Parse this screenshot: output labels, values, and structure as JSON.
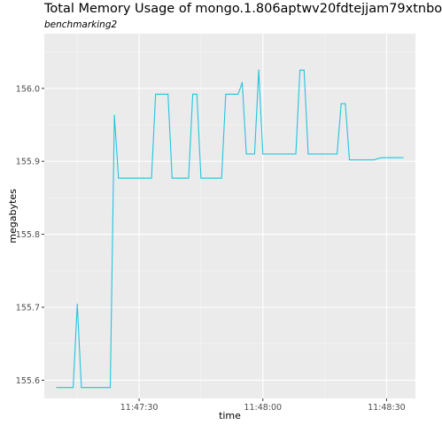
{
  "chart_data": {
    "type": "line",
    "title": "Total Memory Usage of mongo.1.806aptwv20fdtejjam79xtnbo",
    "subtitle": "benchmarking2",
    "xlabel": "time",
    "ylabel": "megabytes",
    "x_tick_labels": [
      "11:47:30",
      "11:48:00",
      "11:48:30"
    ],
    "x_tick_values": [
      "11:47:30",
      "11:48:00",
      "11:48:30"
    ],
    "y_tick_labels": [
      "155.6",
      "155.7",
      "155.8",
      "155.9",
      "156.0"
    ],
    "y_tick_values": [
      155.6,
      155.7,
      155.8,
      155.9,
      156.0
    ],
    "xlim": [
      "11:47:07",
      "11:48:37"
    ],
    "ylim": [
      155.575,
      156.075
    ],
    "grid": true,
    "line_color": "#22c5e0",
    "background_color": "#ebebeb",
    "series": [
      {
        "x": [
          "11:47:10",
          "11:47:11",
          "11:47:12",
          "11:47:13",
          "11:47:14",
          "11:47:15",
          "11:47:16",
          "11:47:17",
          "11:47:18",
          "11:47:19",
          "11:47:20",
          "11:47:21",
          "11:47:22",
          "11:47:23",
          "11:47:24",
          "11:47:25",
          "11:47:26",
          "11:47:27",
          "11:47:28",
          "11:47:29",
          "11:47:30",
          "11:47:31",
          "11:47:32",
          "11:47:33",
          "11:47:34",
          "11:47:35",
          "11:47:36",
          "11:47:37",
          "11:47:38",
          "11:47:39",
          "11:47:40",
          "11:47:41",
          "11:47:42",
          "11:47:43",
          "11:47:44",
          "11:47:45",
          "11:47:46",
          "11:47:47",
          "11:47:48",
          "11:47:49",
          "11:47:50",
          "11:47:51",
          "11:47:52",
          "11:47:53",
          "11:47:54",
          "11:47:55",
          "11:47:56",
          "11:47:57",
          "11:47:58",
          "11:47:59",
          "11:48:00",
          "11:48:01",
          "11:48:02",
          "11:48:03",
          "11:48:04",
          "11:48:05",
          "11:48:06",
          "11:48:07",
          "11:48:08",
          "11:48:09",
          "11:48:10",
          "11:48:11",
          "11:48:12",
          "11:48:13",
          "11:48:14",
          "11:48:15",
          "11:48:16",
          "11:48:17",
          "11:48:18",
          "11:48:19",
          "11:48:20",
          "11:48:21",
          "11:48:22",
          "11:48:23",
          "11:48:24",
          "11:48:25",
          "11:48:26",
          "11:48:27",
          "11:48:28",
          "11:48:29",
          "11:48:30",
          "11:48:31",
          "11:48:32",
          "11:48:33",
          "11:48:34"
        ],
        "values": [
          155.59,
          155.59,
          155.59,
          155.59,
          155.59,
          155.704,
          155.59,
          155.59,
          155.59,
          155.59,
          155.59,
          155.59,
          155.59,
          155.59,
          155.963,
          155.877,
          155.877,
          155.877,
          155.877,
          155.877,
          155.877,
          155.877,
          155.877,
          155.877,
          155.992,
          155.992,
          155.992,
          155.992,
          155.877,
          155.877,
          155.877,
          155.877,
          155.877,
          155.992,
          155.992,
          155.877,
          155.877,
          155.877,
          155.877,
          155.877,
          155.877,
          155.992,
          155.992,
          155.992,
          155.992,
          156.008,
          155.91,
          155.91,
          155.91,
          156.025,
          155.91,
          155.91,
          155.91,
          155.91,
          155.91,
          155.91,
          155.91,
          155.91,
          155.91,
          156.025,
          156.025,
          155.91,
          155.91,
          155.91,
          155.91,
          155.91,
          155.91,
          155.91,
          155.91,
          155.979,
          155.979,
          155.902,
          155.902,
          155.902,
          155.902,
          155.902,
          155.902,
          155.902,
          155.904,
          155.905,
          155.905,
          155.905,
          155.905,
          155.905,
          155.905
        ]
      }
    ]
  }
}
